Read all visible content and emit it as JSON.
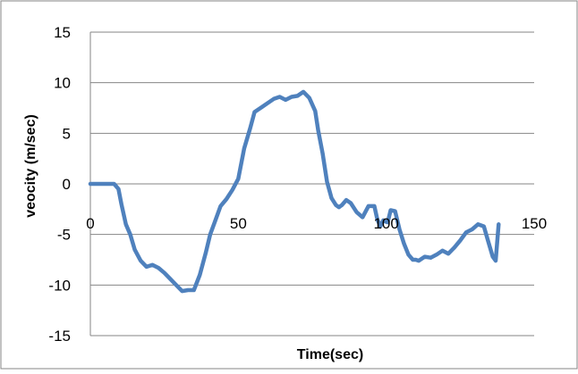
{
  "chart_data": {
    "type": "line",
    "xlabel": "Time(sec)",
    "ylabel": "veocity (m/sec)",
    "xlim": [
      0,
      150
    ],
    "ylim": [
      -15,
      15
    ],
    "xticks": [
      0,
      50,
      100,
      150
    ],
    "yticks": [
      15,
      10,
      5,
      0,
      -5,
      -10,
      -15
    ],
    "grid": true,
    "legend": "none",
    "series": [
      {
        "color": "#4F81BD",
        "x": [
          0,
          2,
          5,
          8,
          9.5,
          10.5,
          12,
          13.5,
          15,
          17,
          19,
          21,
          23,
          25,
          27,
          29,
          31,
          33,
          35,
          37,
          39,
          40.5,
          42,
          44,
          46,
          48,
          50,
          52,
          54,
          55.5,
          56.5,
          58,
          60,
          62,
          64,
          66,
          68,
          70,
          72,
          74,
          76,
          77,
          78.5,
          80,
          81.5,
          83,
          84,
          85,
          86.5,
          88,
          90,
          92,
          94,
          96,
          97,
          98,
          99,
          99.5,
          100.5,
          101.5,
          103,
          104.5,
          106,
          107.5,
          109,
          110,
          111,
          112,
          113,
          115,
          117,
          119,
          121,
          123,
          125,
          127,
          129,
          131,
          133,
          134.5,
          136,
          137,
          138
        ],
        "y": [
          0,
          0,
          0,
          0,
          -0.5,
          -2,
          -4,
          -5,
          -6.5,
          -7.6,
          -8.2,
          -8,
          -8.3,
          -8.8,
          -9.4,
          -10,
          -10.6,
          -10.5,
          -10.5,
          -9,
          -6.8,
          -5,
          -3.8,
          -2.2,
          -1.5,
          -0.6,
          0.5,
          3.5,
          5.5,
          7.1,
          7.3,
          7.6,
          8,
          8.4,
          8.6,
          8.3,
          8.6,
          8.7,
          9.1,
          8.5,
          7.2,
          5.3,
          3,
          0.2,
          -1.4,
          -2.1,
          -2.3,
          -2.1,
          -1.6,
          -1.9,
          -2.8,
          -3.3,
          -2.2,
          -2.2,
          -3.5,
          -4.2,
          -3.6,
          -3.7,
          -3.8,
          -2.6,
          -2.7,
          -4.5,
          -5.9,
          -7,
          -7.5,
          -7.5,
          -7.6,
          -7.4,
          -7.2,
          -7.3,
          -7,
          -6.6,
          -6.9,
          -6.3,
          -5.6,
          -4.8,
          -4.5,
          -4,
          -4.2,
          -5.7,
          -7.2,
          -7.6,
          -4
        ]
      }
    ]
  }
}
